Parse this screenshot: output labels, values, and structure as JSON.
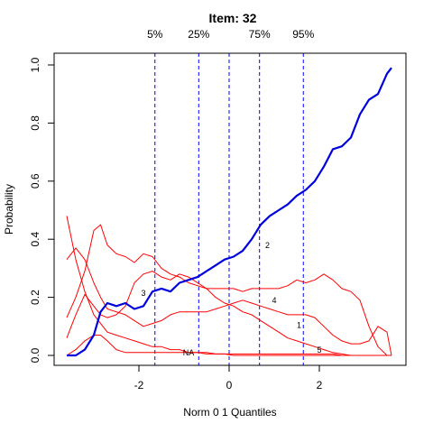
{
  "chart_data": {
    "type": "line",
    "title": "Item:  32",
    "xlabel": "Norm 0 1 Quantiles",
    "ylabel": "Probability",
    "xlim": [
      -3.6,
      3.6
    ],
    "ylim": [
      0,
      1
    ],
    "x_ticks": [
      {
        "value": -2,
        "label": "-2"
      },
      {
        "value": 0,
        "label": "0"
      },
      {
        "value": 2,
        "label": "2"
      }
    ],
    "y_ticks": [
      {
        "value": 0,
        "label": "0.0"
      },
      {
        "value": 0.2,
        "label": "0.2"
      },
      {
        "value": 0.4,
        "label": "0.4"
      },
      {
        "value": 0.6,
        "label": "0.6"
      },
      {
        "value": 0.8,
        "label": "0.8"
      },
      {
        "value": 1.0,
        "label": "1.0"
      }
    ],
    "grid": false,
    "quantile_lines": [
      {
        "label": "5%",
        "x": -1.645
      },
      {
        "label": "25%",
        "x": -0.674
      },
      {
        "label": "",
        "x": 0
      },
      {
        "label": "75%",
        "x": 0.674
      },
      {
        "label": "95%",
        "x": 1.645
      }
    ],
    "colors": {
      "key": "#0000dd",
      "distractor": "#ff0000",
      "quantile": "#0000ff"
    },
    "series": [
      {
        "name": "2",
        "key": true,
        "label_at": [
          0.85,
          0.37
        ],
        "x": [
          -3.6,
          -3.4,
          -3.2,
          -3.0,
          -2.85,
          -2.7,
          -2.5,
          -2.3,
          -2.1,
          -1.9,
          -1.7,
          -1.5,
          -1.3,
          -1.1,
          -0.9,
          -0.7,
          -0.5,
          -0.3,
          -0.1,
          0.1,
          0.3,
          0.5,
          0.7,
          0.9,
          1.1,
          1.3,
          1.5,
          1.7,
          1.9,
          2.1,
          2.3,
          2.5,
          2.7,
          2.9,
          3.1,
          3.3,
          3.5,
          3.6
        ],
        "y": [
          0.0,
          0.0,
          0.02,
          0.07,
          0.15,
          0.18,
          0.17,
          0.18,
          0.16,
          0.17,
          0.22,
          0.23,
          0.22,
          0.25,
          0.26,
          0.27,
          0.29,
          0.31,
          0.33,
          0.34,
          0.36,
          0.4,
          0.45,
          0.48,
          0.5,
          0.52,
          0.55,
          0.57,
          0.6,
          0.65,
          0.71,
          0.72,
          0.75,
          0.83,
          0.88,
          0.9,
          0.97,
          0.99
        ]
      },
      {
        "name": "3",
        "key": false,
        "label_at": [
          -1.9,
          0.205
        ],
        "x": [
          -3.6,
          -3.4,
          -3.2,
          -3.0,
          -2.85,
          -2.7,
          -2.5,
          -2.3,
          -2.1,
          -1.9,
          -1.7,
          -1.5,
          -1.3,
          -1.1,
          -0.9,
          -0.7,
          -0.5,
          -0.3,
          -0.1,
          0.1,
          0.3,
          0.5,
          0.7,
          0.9,
          1.1,
          1.3,
          1.5,
          1.7,
          1.9,
          2.1,
          2.3,
          2.5,
          2.7,
          2.9,
          3.1,
          3.3,
          3.5,
          3.6
        ],
        "y": [
          0.13,
          0.2,
          0.29,
          0.43,
          0.45,
          0.38,
          0.35,
          0.34,
          0.32,
          0.35,
          0.34,
          0.3,
          0.28,
          0.27,
          0.25,
          0.24,
          0.23,
          0.2,
          0.18,
          0.17,
          0.15,
          0.14,
          0.12,
          0.1,
          0.08,
          0.06,
          0.05,
          0.04,
          0.03,
          0.02,
          0.01,
          0.005,
          0.0,
          0.0,
          0.0,
          0.0,
          0.0,
          0.0
        ]
      },
      {
        "name": "4",
        "key": false,
        "label_at": [
          1.0,
          0.18
        ],
        "x": [
          -3.6,
          -3.4,
          -3.2,
          -3.0,
          -2.85,
          -2.7,
          -2.5,
          -2.3,
          -2.1,
          -1.9,
          -1.7,
          -1.5,
          -1.3,
          -1.1,
          -0.9,
          -0.7,
          -0.5,
          -0.3,
          -0.1,
          0.1,
          0.3,
          0.5,
          0.7,
          0.9,
          1.1,
          1.3,
          1.5,
          1.7,
          1.9,
          2.1,
          2.3,
          2.5,
          2.7,
          2.9,
          3.1,
          3.3,
          3.5,
          3.6
        ],
        "y": [
          0.06,
          0.14,
          0.21,
          0.17,
          0.14,
          0.13,
          0.14,
          0.17,
          0.25,
          0.28,
          0.29,
          0.27,
          0.26,
          0.28,
          0.27,
          0.25,
          0.23,
          0.23,
          0.23,
          0.23,
          0.22,
          0.23,
          0.23,
          0.23,
          0.23,
          0.24,
          0.26,
          0.25,
          0.26,
          0.28,
          0.26,
          0.23,
          0.22,
          0.19,
          0.1,
          0.03,
          0.0,
          0.0
        ]
      },
      {
        "name": "1",
        "key": false,
        "label_at": [
          1.55,
          0.095
        ],
        "x": [
          -3.6,
          -3.4,
          -3.2,
          -3.0,
          -2.85,
          -2.7,
          -2.5,
          -2.3,
          -2.1,
          -1.9,
          -1.7,
          -1.5,
          -1.3,
          -1.1,
          -0.9,
          -0.7,
          -0.5,
          -0.3,
          -0.1,
          0.1,
          0.3,
          0.5,
          0.7,
          0.9,
          1.1,
          1.3,
          1.5,
          1.7,
          1.9,
          2.1,
          2.3,
          2.5,
          2.7,
          2.9,
          3.1,
          3.3,
          3.5,
          3.6
        ],
        "y": [
          0.33,
          0.37,
          0.33,
          0.25,
          0.2,
          0.16,
          0.15,
          0.14,
          0.12,
          0.1,
          0.11,
          0.12,
          0.14,
          0.15,
          0.15,
          0.15,
          0.15,
          0.16,
          0.17,
          0.18,
          0.19,
          0.18,
          0.17,
          0.16,
          0.15,
          0.14,
          0.14,
          0.14,
          0.13,
          0.1,
          0.07,
          0.05,
          0.04,
          0.04,
          0.05,
          0.1,
          0.08,
          0.0
        ]
      },
      {
        "name": "5",
        "key": false,
        "label_at": [
          2.0,
          0.01
        ],
        "x": [
          -3.6,
          -3.4,
          -3.2,
          -3.0,
          -2.85,
          -2.7,
          -2.5,
          -2.3,
          -2.1,
          -1.9,
          -1.7,
          -1.5,
          -1.3,
          -1.1,
          -0.9,
          -0.7,
          -0.5,
          -0.3,
          -0.1,
          0.1,
          0.3,
          0.5,
          0.7,
          0.9,
          1.1,
          1.3,
          1.5,
          1.7,
          1.9,
          2.1,
          2.3,
          2.5,
          2.7,
          2.9,
          3.1,
          3.3,
          3.5,
          3.6
        ],
        "y": [
          0.0,
          0.02,
          0.05,
          0.07,
          0.07,
          0.05,
          0.02,
          0.01,
          0.01,
          0.01,
          0.01,
          0.01,
          0.01,
          0.01,
          0.01,
          0.01,
          0.005,
          0.005,
          0.005,
          0.005,
          0.005,
          0.005,
          0.005,
          0.005,
          0.005,
          0.005,
          0.005,
          0.005,
          0.005,
          0.005,
          0.005,
          0.0,
          0.0,
          0.0,
          0.0,
          0.0,
          0.0,
          0.0
        ]
      },
      {
        "name": "NA",
        "key": false,
        "label_at": [
          -0.9,
          0.0
        ],
        "x": [
          -3.6,
          -3.4,
          -3.2,
          -3.0,
          -2.85,
          -2.7,
          -2.5,
          -2.3,
          -2.1,
          -1.9,
          -1.7,
          -1.5,
          -1.3,
          -1.1,
          -0.9,
          -0.7,
          -0.5,
          -0.3,
          -0.1,
          0.1,
          0.3,
          0.5,
          0.7,
          0.9,
          1.1,
          1.3,
          1.5,
          1.7,
          1.9,
          2.1,
          2.3,
          2.5,
          2.7,
          2.9,
          3.1,
          3.3,
          3.5,
          3.6
        ],
        "y": [
          0.48,
          0.33,
          0.22,
          0.14,
          0.11,
          0.08,
          0.07,
          0.06,
          0.05,
          0.04,
          0.03,
          0.03,
          0.02,
          0.02,
          0.01,
          0.01,
          0.01,
          0.005,
          0.005,
          0.0,
          0.0,
          0.0,
          0.0,
          0.0,
          0.0,
          0.0,
          0.0,
          0.0,
          0.0,
          0.0,
          0.0,
          0.0,
          0.0,
          0.0,
          0.0,
          0.0,
          0.0,
          0.0
        ]
      }
    ]
  }
}
